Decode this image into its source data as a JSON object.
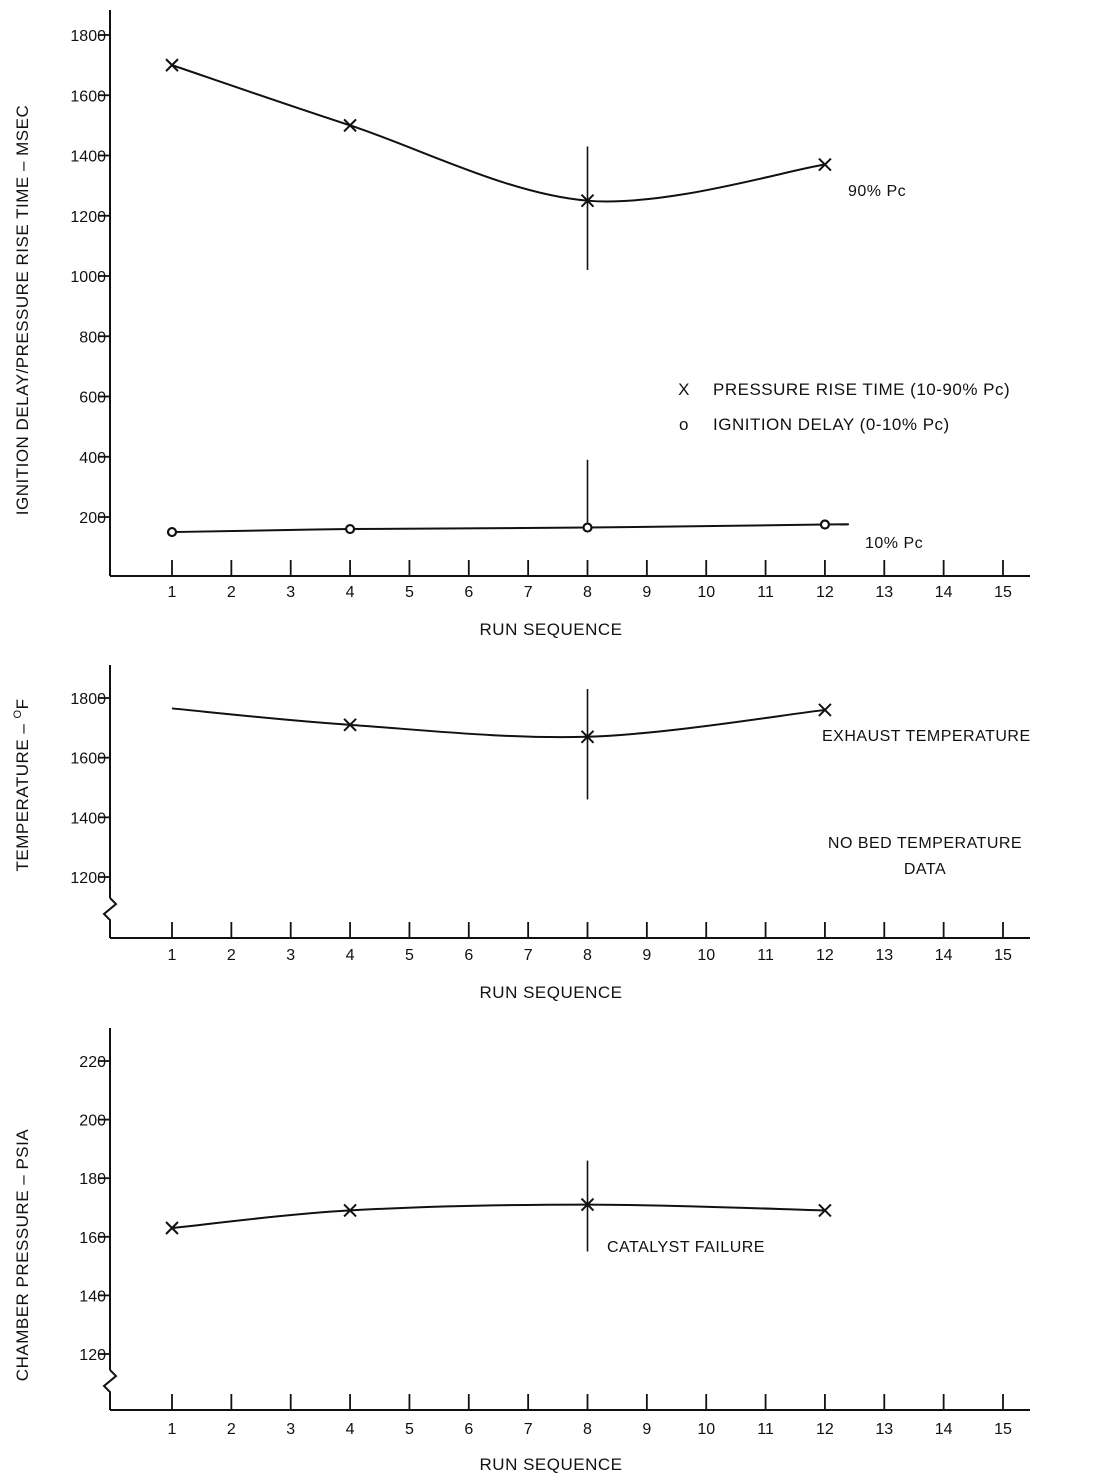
{
  "colors": {
    "ink": "#111111",
    "background": "#ffffff"
  },
  "chart_data": [
    {
      "type": "line",
      "xlabel": "RUN SEQUENCE",
      "ylabel": "IGNITION DELAY/PRESSURE RISE TIME – MSEC",
      "x_ticks": [
        "1",
        "2",
        "3",
        "4",
        "5",
        "6",
        "7",
        "8",
        "9",
        "10",
        "11",
        "12",
        "13",
        "14",
        "15"
      ],
      "y_ticks": [
        "200",
        "400",
        "600",
        "800",
        "1000",
        "1200",
        "1400",
        "1600",
        "1800"
      ],
      "xlim": [
        1,
        15
      ],
      "ylim": [
        0,
        1900
      ],
      "grid": false,
      "legend": [
        {
          "marker": "X",
          "label": "PRESSURE RISE TIME (10-90% Pc)"
        },
        {
          "marker": "o",
          "label": "IGNITION DELAY (0-10% Pc)"
        }
      ],
      "series": [
        {
          "name": "PRESSURE RISE TIME (10-90% Pc)",
          "marker": "x",
          "x": [
            1,
            4,
            8,
            12
          ],
          "y": [
            1700,
            1500,
            1250,
            1370
          ],
          "error_bar": {
            "x": 8,
            "low": 1020,
            "high": 1430
          },
          "label": "90% Pc"
        },
        {
          "name": "IGNITION DELAY (0-10% Pc)",
          "marker": "o",
          "x": [
            1,
            4,
            8,
            12
          ],
          "y": [
            150,
            160,
            165,
            175
          ],
          "error_bar": {
            "x": 8,
            "low": 150,
            "high": 390
          },
          "label": "10% Pc"
        }
      ]
    },
    {
      "type": "line",
      "xlabel": "RUN SEQUENCE",
      "ylabel": "TEMPERATURE – °F",
      "y_label_parts": {
        "main": "TEMPERATURE – ",
        "sup": "O",
        "unit": "F"
      },
      "x_ticks": [
        "1",
        "2",
        "3",
        "4",
        "5",
        "6",
        "7",
        "8",
        "9",
        "10",
        "11",
        "12",
        "13",
        "14",
        "15"
      ],
      "y_ticks": [
        "1200",
        "1400",
        "1600",
        "1800"
      ],
      "xlim": [
        1,
        15
      ],
      "ylim": [
        1000,
        1900
      ],
      "axis_break": true,
      "grid": false,
      "series": [
        {
          "name": "EXHAUST TEMPERATURE",
          "marker": "x",
          "x": [
            4,
            8,
            12
          ],
          "y": [
            1710,
            1670,
            1760
          ],
          "line_from": {
            "x": 1,
            "y": 1765
          },
          "error_bar": {
            "x": 8,
            "low": 1460,
            "high": 1830
          },
          "label": "EXHAUST TEMPERATURE"
        }
      ],
      "annotation": [
        "NO BED TEMPERATURE",
        "DATA"
      ]
    },
    {
      "type": "line",
      "xlabel": "RUN SEQUENCE",
      "ylabel": "CHAMBER PRESSURE – PSIA",
      "x_ticks": [
        "1",
        "2",
        "3",
        "4",
        "5",
        "6",
        "7",
        "8",
        "9",
        "10",
        "11",
        "12",
        "13",
        "14",
        "15"
      ],
      "y_ticks": [
        "120",
        "140",
        "160",
        "180",
        "200",
        "220"
      ],
      "xlim": [
        1,
        15
      ],
      "ylim": [
        100,
        230
      ],
      "axis_break": true,
      "grid": false,
      "series": [
        {
          "name": "CHAMBER PRESSURE",
          "marker": "x",
          "x": [
            1,
            4,
            8,
            12
          ],
          "y": [
            163,
            169,
            171,
            169
          ],
          "error_bar": {
            "x": 8,
            "low": 155,
            "high": 186
          }
        }
      ],
      "annotation": [
        "CATALYST FAILURE"
      ]
    }
  ]
}
